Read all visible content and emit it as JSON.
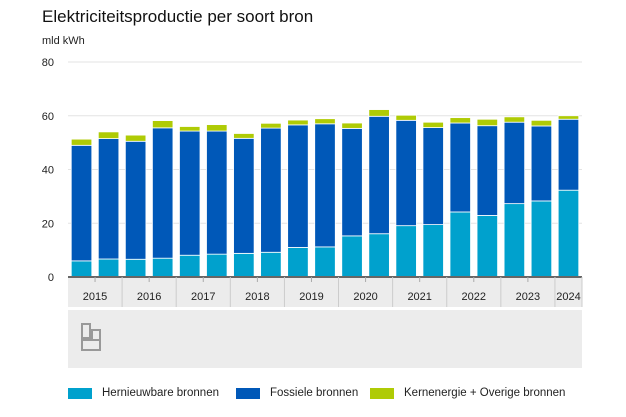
{
  "chart_data": {
    "type": "bar",
    "stacked": true,
    "title": "Elektriciteitsproductie per soort bron",
    "ylabel": "mld kWh",
    "ylim": [
      0,
      80
    ],
    "yticks": [
      0,
      20,
      40,
      60,
      80
    ],
    "grid": true,
    "legend_position": "bottom",
    "year_labels": [
      "2015",
      "2016",
      "2017",
      "2018",
      "2019",
      "2020",
      "2021",
      "2022",
      "2023",
      "2024"
    ],
    "bars_per_year": [
      2,
      2,
      2,
      2,
      2,
      2,
      2,
      2,
      2,
      1
    ],
    "series": [
      {
        "name": "Hernieuwbare bronnen",
        "color": "#00a1cd",
        "values": [
          6.0,
          6.7,
          6.6,
          7.0,
          8.1,
          8.5,
          8.8,
          9.2,
          11.0,
          11.2,
          15.3,
          16.1,
          19.1,
          19.5,
          24.2,
          22.9,
          27.3,
          28.3,
          32.3
        ]
      },
      {
        "name": "Fossiele bronnen",
        "color": "#0058b8",
        "values": [
          43.0,
          44.8,
          43.9,
          48.5,
          46.2,
          45.8,
          42.8,
          46.2,
          45.6,
          45.8,
          40.0,
          43.7,
          39.2,
          36.1,
          33.1,
          33.4,
          30.3,
          27.9,
          26.4
        ]
      },
      {
        "name": "Kernenergie + Overige bronnen",
        "color": "#afcb05",
        "values": [
          2.3,
          2.5,
          2.3,
          2.7,
          1.7,
          2.4,
          1.8,
          1.8,
          1.8,
          1.9,
          2.0,
          2.5,
          1.9,
          2.0,
          2.0,
          2.4,
          2.0,
          2.1,
          1.3
        ]
      }
    ]
  }
}
